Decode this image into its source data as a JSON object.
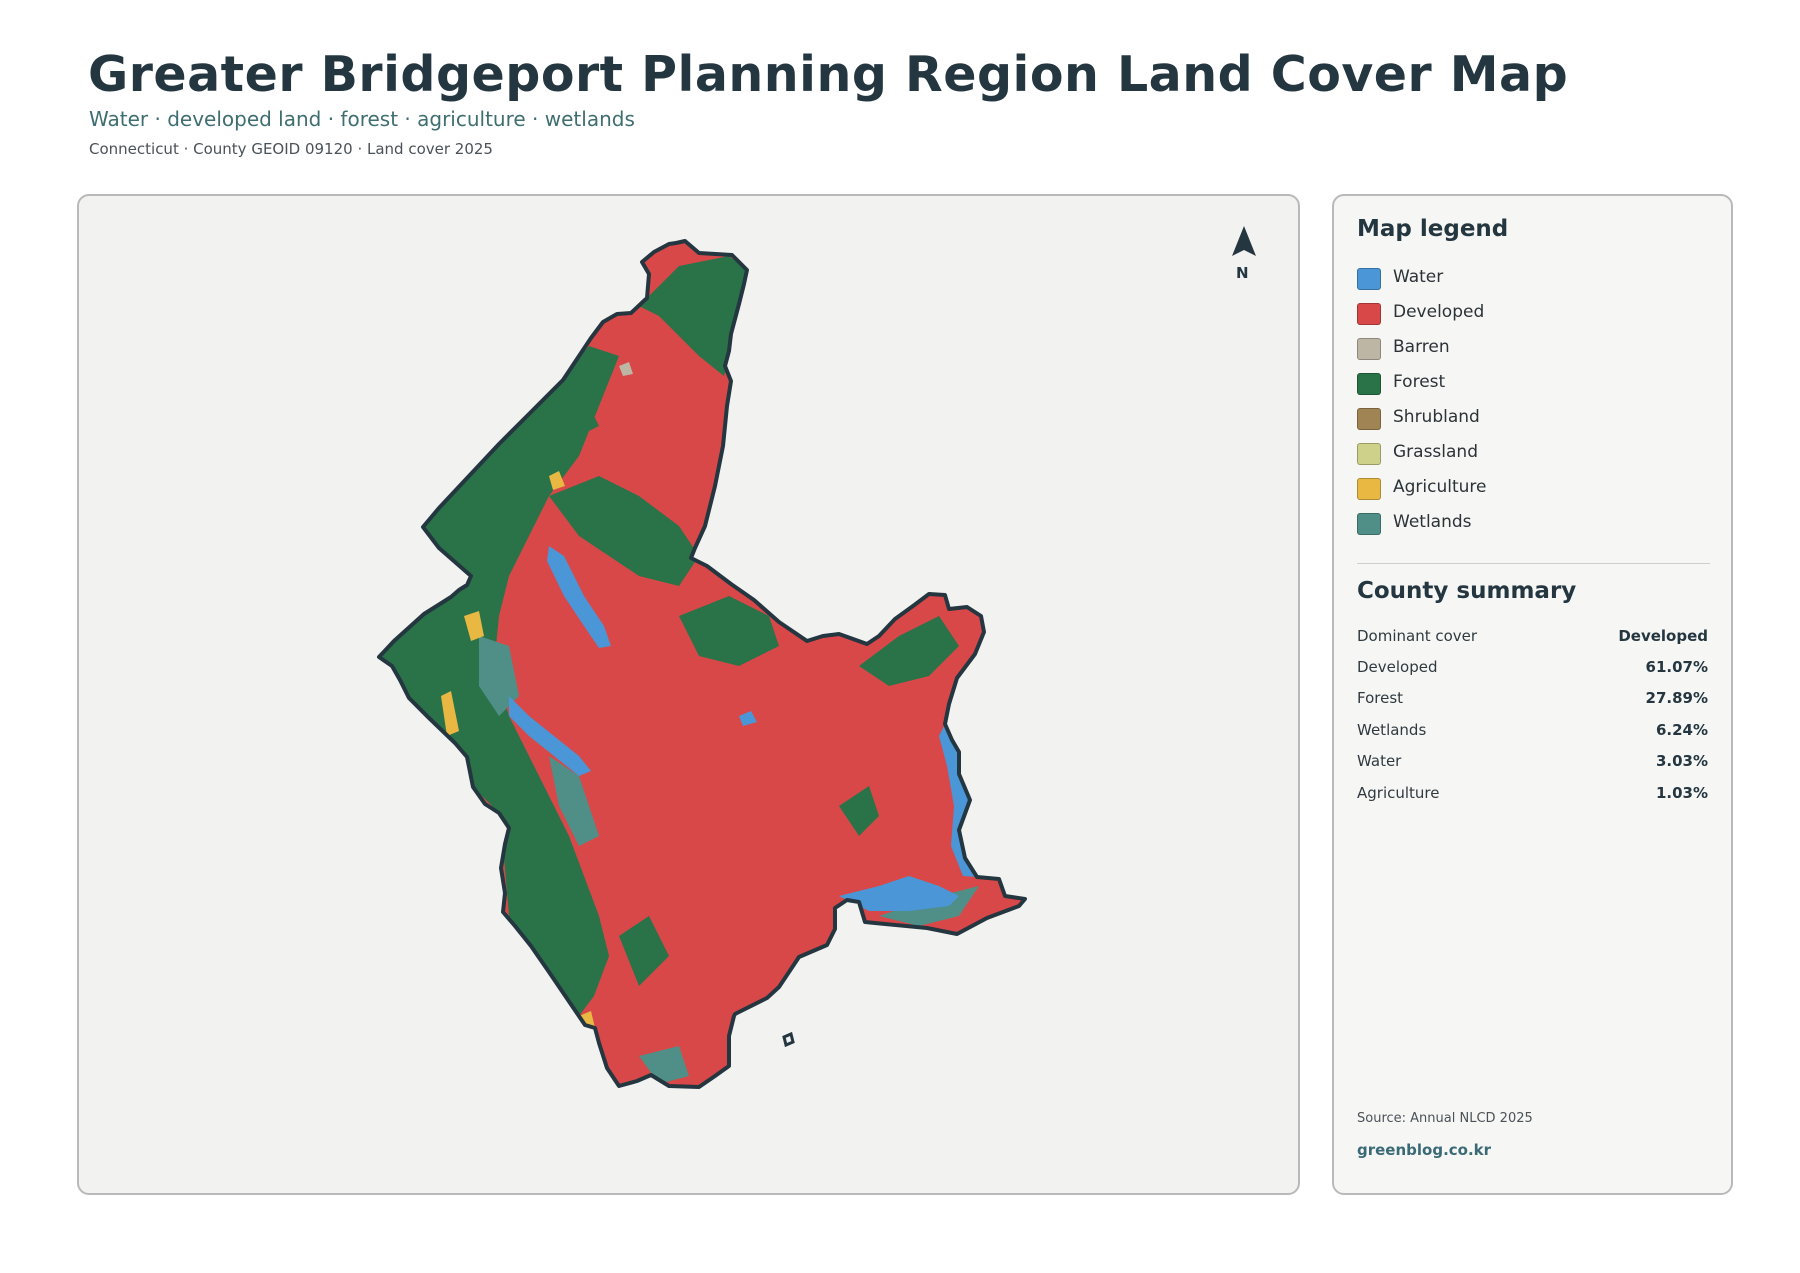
{
  "header": {
    "title": "Greater Bridgeport Planning Region Land Cover Map",
    "subtitle": "Water · developed land · forest · agriculture · wetlands",
    "meta": "Connecticut · County GEOID 09120 · Land cover 2025"
  },
  "map": {
    "north_label": "N",
    "colors": {
      "water": "#4a96d6",
      "developed": "#d84848",
      "forest": "#2a7248",
      "agriculture": "#e9b843",
      "wetlands": "#4f8f87",
      "barren": "#bdb6a5",
      "boundary": "#243640",
      "background": "#f2f2f1"
    }
  },
  "legend": {
    "heading": "Map legend",
    "items": [
      {
        "label": "Water",
        "color": "#4a96d6"
      },
      {
        "label": "Developed",
        "color": "#d84848"
      },
      {
        "label": "Barren",
        "color": "#bdb6a5"
      },
      {
        "label": "Forest",
        "color": "#2a7248"
      },
      {
        "label": "Shrubland",
        "color": "#a08453"
      },
      {
        "label": "Grassland",
        "color": "#cdd18a"
      },
      {
        "label": "Agriculture",
        "color": "#e9b843"
      },
      {
        "label": "Wetlands",
        "color": "#4f8f87"
      }
    ]
  },
  "summary": {
    "heading": "County summary",
    "rows": [
      {
        "key": "Dominant cover",
        "value": "Developed"
      },
      {
        "key": "Developed",
        "value": "61.07%"
      },
      {
        "key": "Forest",
        "value": "27.89%"
      },
      {
        "key": "Wetlands",
        "value": "6.24%"
      },
      {
        "key": "Water",
        "value": "3.03%"
      },
      {
        "key": "Agriculture",
        "value": "1.03%"
      }
    ]
  },
  "footer": {
    "source": "Source: Annual NLCD 2025",
    "brand": "greenblog.co.kr"
  }
}
